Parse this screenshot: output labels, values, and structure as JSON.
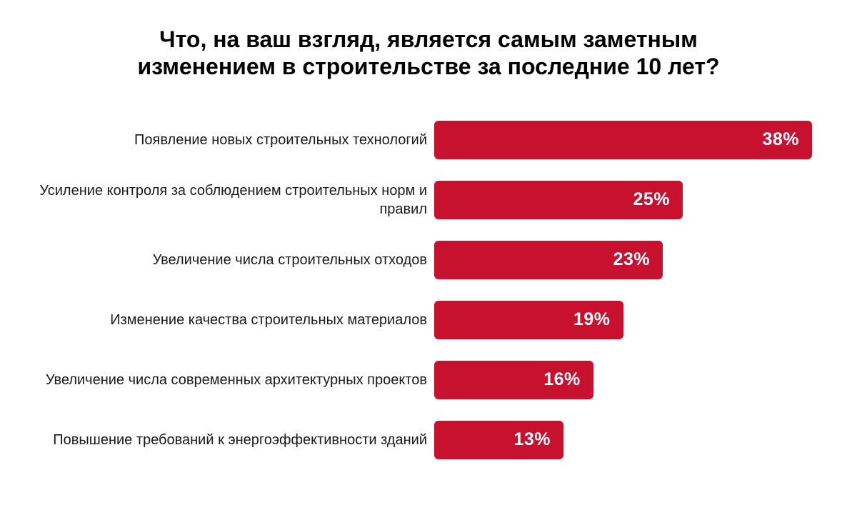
{
  "chart_data": {
    "type": "bar",
    "orientation": "horizontal",
    "title": "Что, на ваш взгляд, является самым заметным изменением в строительстве за последние 10 лет?",
    "title_lines": [
      "Что, на ваш взгляд, является самым заметным",
      "изменением в строительстве за последние 10 лет?"
    ],
    "categories": [
      "Появление новых строительных технологий",
      "Усиление контроля за соблюдением строительных норм и правил",
      "Увеличение числа строительных отходов",
      "Изменение качества строительных материалов",
      "Увеличение числа современных архитектурных проектов",
      "Повышение требований к энергоэффективности зданий"
    ],
    "values": [
      38,
      25,
      23,
      19,
      16,
      13
    ],
    "value_suffix": "%",
    "scale_max": 38,
    "xlabel": "",
    "ylabel": "",
    "grid": false,
    "legend": false,
    "axes_visible": false,
    "colors": {
      "bar": "#C8112E",
      "value_label": "#FFFFFF",
      "category_label": "#1A1A1A",
      "title": "#000000",
      "background": "#FFFFFF"
    }
  }
}
